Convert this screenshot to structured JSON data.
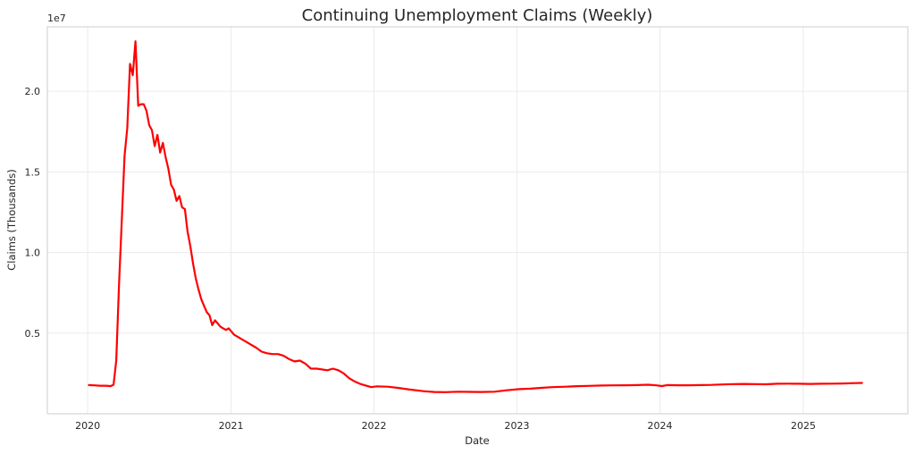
{
  "chart_data": {
    "type": "line",
    "title": "Continuing Unemployment Claims (Weekly)",
    "xlabel": "Date",
    "ylabel": "Claims (Thousands)",
    "y_offset_text": "1e7",
    "x_ticks": [
      "2020",
      "2021",
      "2022",
      "2023",
      "2024",
      "2025"
    ],
    "y_ticks": [
      "0.5",
      "1.0",
      "1.5",
      "2.0"
    ],
    "y_tick_values": [
      5000000,
      10000000,
      15000000,
      20000000
    ],
    "xlim": [
      "2019-09-20",
      "2025-09-25"
    ],
    "ylim": [
      0,
      24000000
    ],
    "grid": true,
    "line_color": "#ff0000",
    "series": [
      {
        "name": "",
        "points": [
          [
            "2020-01-04",
            1780000
          ],
          [
            "2020-01-18",
            1760000
          ],
          [
            "2020-02-01",
            1740000
          ],
          [
            "2020-02-15",
            1740000
          ],
          [
            "2020-02-29",
            1720000
          ],
          [
            "2020-03-07",
            1800000
          ],
          [
            "2020-03-14",
            3300000
          ],
          [
            "2020-03-21",
            8000000
          ],
          [
            "2020-03-28",
            12000000
          ],
          [
            "2020-04-04",
            16000000
          ],
          [
            "2020-04-11",
            17700000
          ],
          [
            "2020-04-18",
            21700000
          ],
          [
            "2020-04-25",
            21000000
          ],
          [
            "2020-05-02",
            23100000
          ],
          [
            "2020-05-09",
            19100000
          ],
          [
            "2020-05-16",
            19200000
          ],
          [
            "2020-05-23",
            19200000
          ],
          [
            "2020-05-30",
            18800000
          ],
          [
            "2020-06-06",
            17900000
          ],
          [
            "2020-06-13",
            17600000
          ],
          [
            "2020-06-20",
            16600000
          ],
          [
            "2020-06-27",
            17300000
          ],
          [
            "2020-07-04",
            16200000
          ],
          [
            "2020-07-11",
            16800000
          ],
          [
            "2020-07-18",
            15900000
          ],
          [
            "2020-07-25",
            15200000
          ],
          [
            "2020-08-01",
            14200000
          ],
          [
            "2020-08-08",
            13900000
          ],
          [
            "2020-08-15",
            13200000
          ],
          [
            "2020-08-22",
            13500000
          ],
          [
            "2020-08-29",
            12800000
          ],
          [
            "2020-09-05",
            12700000
          ],
          [
            "2020-09-12",
            11300000
          ],
          [
            "2020-09-19",
            10400000
          ],
          [
            "2020-09-26",
            9300000
          ],
          [
            "2020-10-03",
            8400000
          ],
          [
            "2020-10-10",
            7700000
          ],
          [
            "2020-10-17",
            7100000
          ],
          [
            "2020-10-24",
            6700000
          ],
          [
            "2020-10-31",
            6300000
          ],
          [
            "2020-11-07",
            6100000
          ],
          [
            "2020-11-14",
            5500000
          ],
          [
            "2020-11-21",
            5800000
          ],
          [
            "2020-11-28",
            5600000
          ],
          [
            "2020-12-05",
            5400000
          ],
          [
            "2020-12-12",
            5300000
          ],
          [
            "2020-12-19",
            5200000
          ],
          [
            "2020-12-26",
            5300000
          ],
          [
            "2021-01-09",
            4900000
          ],
          [
            "2021-01-23",
            4700000
          ],
          [
            "2021-02-06",
            4500000
          ],
          [
            "2021-02-20",
            4300000
          ],
          [
            "2021-03-06",
            4100000
          ],
          [
            "2021-03-20",
            3850000
          ],
          [
            "2021-04-03",
            3750000
          ],
          [
            "2021-04-17",
            3700000
          ],
          [
            "2021-05-01",
            3700000
          ],
          [
            "2021-05-15",
            3600000
          ],
          [
            "2021-05-29",
            3400000
          ],
          [
            "2021-06-12",
            3250000
          ],
          [
            "2021-06-26",
            3300000
          ],
          [
            "2021-07-10",
            3100000
          ],
          [
            "2021-07-24",
            2800000
          ],
          [
            "2021-08-07",
            2800000
          ],
          [
            "2021-08-21",
            2750000
          ],
          [
            "2021-09-04",
            2700000
          ],
          [
            "2021-09-18",
            2800000
          ],
          [
            "2021-10-02",
            2700000
          ],
          [
            "2021-10-16",
            2500000
          ],
          [
            "2021-10-30",
            2200000
          ],
          [
            "2021-11-13",
            2000000
          ],
          [
            "2021-11-27",
            1850000
          ],
          [
            "2021-12-11",
            1750000
          ],
          [
            "2021-12-25",
            1650000
          ],
          [
            "2022-01-08",
            1700000
          ],
          [
            "2022-02-05",
            1680000
          ],
          [
            "2022-03-05",
            1600000
          ],
          [
            "2022-04-02",
            1500000
          ],
          [
            "2022-05-07",
            1400000
          ],
          [
            "2022-06-04",
            1350000
          ],
          [
            "2022-07-02",
            1340000
          ],
          [
            "2022-08-06",
            1370000
          ],
          [
            "2022-09-03",
            1360000
          ],
          [
            "2022-10-01",
            1350000
          ],
          [
            "2022-11-05",
            1370000
          ],
          [
            "2022-12-03",
            1450000
          ],
          [
            "2023-01-07",
            1530000
          ],
          [
            "2023-02-04",
            1560000
          ],
          [
            "2023-03-04",
            1610000
          ],
          [
            "2023-04-01",
            1650000
          ],
          [
            "2023-05-06",
            1680000
          ],
          [
            "2023-06-03",
            1710000
          ],
          [
            "2023-07-01",
            1730000
          ],
          [
            "2023-08-05",
            1750000
          ],
          [
            "2023-09-02",
            1760000
          ],
          [
            "2023-10-07",
            1770000
          ],
          [
            "2023-11-04",
            1780000
          ],
          [
            "2023-12-02",
            1800000
          ],
          [
            "2023-12-23",
            1760000
          ],
          [
            "2024-01-06",
            1720000
          ],
          [
            "2024-01-20",
            1780000
          ],
          [
            "2024-02-17",
            1770000
          ],
          [
            "2024-03-16",
            1770000
          ],
          [
            "2024-04-13",
            1780000
          ],
          [
            "2024-05-11",
            1790000
          ],
          [
            "2024-06-08",
            1820000
          ],
          [
            "2024-07-06",
            1840000
          ],
          [
            "2024-08-03",
            1850000
          ],
          [
            "2024-08-31",
            1840000
          ],
          [
            "2024-09-28",
            1830000
          ],
          [
            "2024-10-26",
            1860000
          ],
          [
            "2024-11-23",
            1870000
          ],
          [
            "2024-12-21",
            1860000
          ],
          [
            "2025-01-18",
            1850000
          ],
          [
            "2025-02-15",
            1860000
          ],
          [
            "2025-03-15",
            1870000
          ],
          [
            "2025-04-12",
            1880000
          ],
          [
            "2025-05-10",
            1900000
          ],
          [
            "2025-05-31",
            1910000
          ]
        ]
      }
    ]
  }
}
